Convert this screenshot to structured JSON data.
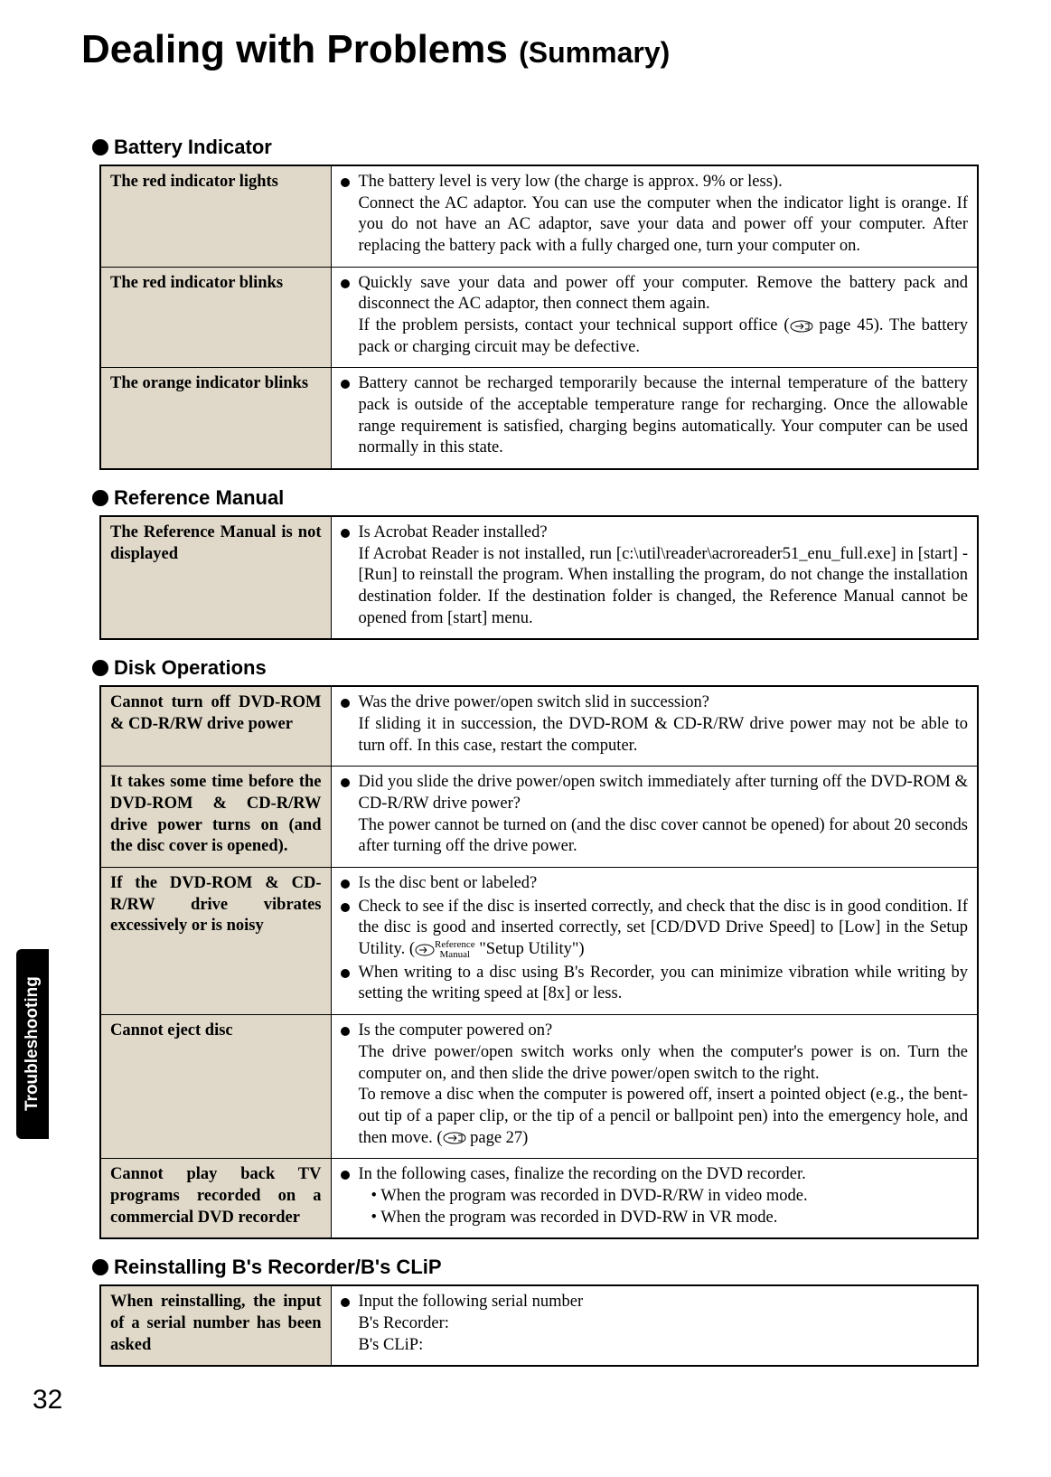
{
  "page": {
    "title_main": "Dealing with Problems",
    "title_sub": "(Summary)",
    "side_tab": "Troubleshooting",
    "page_number": "32"
  },
  "colors": {
    "label_bg": "#e0d9c9",
    "border": "#000000",
    "text": "#000000",
    "tab_bg": "#000000",
    "tab_text": "#ffffff"
  },
  "sections": [
    {
      "heading": "Battery Indicator",
      "rows": [
        {
          "label": "The red indicator lights",
          "items": [
            {
              "lead": "The battery level is very low (the charge is approx. 9% or less).",
              "body": "Connect the AC adaptor. You can use the computer when the indicator light is orange. If you do not have an AC adaptor, save your data and power off your computer. After replacing the battery pack with a fully charged one, turn your computer on."
            }
          ]
        },
        {
          "label": "The red indicator blinks",
          "items": [
            {
              "lead": "Quickly save your data and power off your computer. Remove the battery pack and disconnect the AC adaptor, then connect them again.",
              "body_pre": "If the problem persists, contact your technical support office (",
              "page_ref": " page 45).  ",
              "body_post": "The battery pack or charging circuit may be defective."
            }
          ]
        },
        {
          "label": "The orange indicator blinks",
          "items": [
            {
              "lead": "Battery cannot be recharged temporarily because the internal temperature of the battery pack is outside of the acceptable temperature range for recharging. Once the allowable range requirement is satisfied, charging begins automatically. Your computer can be used normally in this state."
            }
          ]
        }
      ]
    },
    {
      "heading": "Reference Manual",
      "rows": [
        {
          "label": "The Reference Manual is not displayed",
          "items": [
            {
              "lead": "Is Acrobat Reader installed?",
              "body": "If Acrobat Reader is not installed, run [c:\\util\\reader\\acroreader51_enu_full.exe] in [start] - [Run] to reinstall the program.  When installing the program, do not change the installation destination folder.  If the destination folder is changed, the Reference Manual cannot be opened from [start] menu."
            }
          ]
        }
      ]
    },
    {
      "heading": "Disk Operations",
      "rows": [
        {
          "label": "Cannot turn off DVD-ROM & CD-R/RW drive power",
          "items": [
            {
              "lead": "Was the drive power/open switch slid in succession?",
              "body": "If sliding it in succession, the DVD-ROM & CD-R/RW drive power may not be able to turn off. In this case, restart the computer."
            }
          ]
        },
        {
          "label": "It takes some time before the DVD-ROM & CD-R/RW drive power turns on (and the disc cover is opened).",
          "items": [
            {
              "lead": "Did you slide the drive power/open switch immediately after turning off the DVD-ROM & CD-R/RW drive power?",
              "body": "The power cannot be turned on (and the disc cover cannot be opened) for about 20 seconds after turning off the drive power."
            }
          ]
        },
        {
          "label": "If the DVD-ROM & CD-R/RW drive vibrates excessively or is noisy",
          "items": [
            {
              "lead": "Is the disc bent or labeled?"
            },
            {
              "lead": "Check to see if the disc is inserted correctly, and check that the disc is in good condition. If the disc is good and inserted correctly, set [CD/DVD Drive Speed] to [Low] in the Setup Utility. (",
              "refmanual": true,
              "after_ref": " \"Setup Utility\")"
            },
            {
              "lead": "When writing to a disc using B's Recorder, you can minimize vibration while writing by setting the writing speed at [8x] or less."
            }
          ]
        },
        {
          "label": "Cannot eject disc",
          "items": [
            {
              "lead": "Is the computer powered on?",
              "body": "The drive power/open switch works only when the computer's power is on. Turn the computer on, and then slide the drive power/open switch to the right.",
              "body2_pre": "To remove a disc when the computer is powered off, insert a pointed object (e.g., the bent-out tip of a paper clip, or the tip of a pencil or ballpoint pen) into the emergency hole, and then move. (",
              "page_ref2": " page 27)"
            }
          ]
        },
        {
          "label": "Cannot play back TV programs recorded on a commercial DVD recorder",
          "items": [
            {
              "lead": "In the following cases, finalize the recording on the DVD recorder.",
              "sub1": "• When the program was recorded in DVD-R/RW in video mode.",
              "sub2": "• When the program was recorded in DVD-RW in VR mode."
            }
          ]
        }
      ]
    },
    {
      "heading": "Reinstalling B's Recorder/B's CLiP",
      "rows": [
        {
          "label": "When reinstalling, the input of a serial number has been asked",
          "items": [
            {
              "lead": "Input the following serial number",
              "line1": "B's Recorder:",
              "line2": "B's CLiP:"
            }
          ]
        }
      ]
    }
  ]
}
